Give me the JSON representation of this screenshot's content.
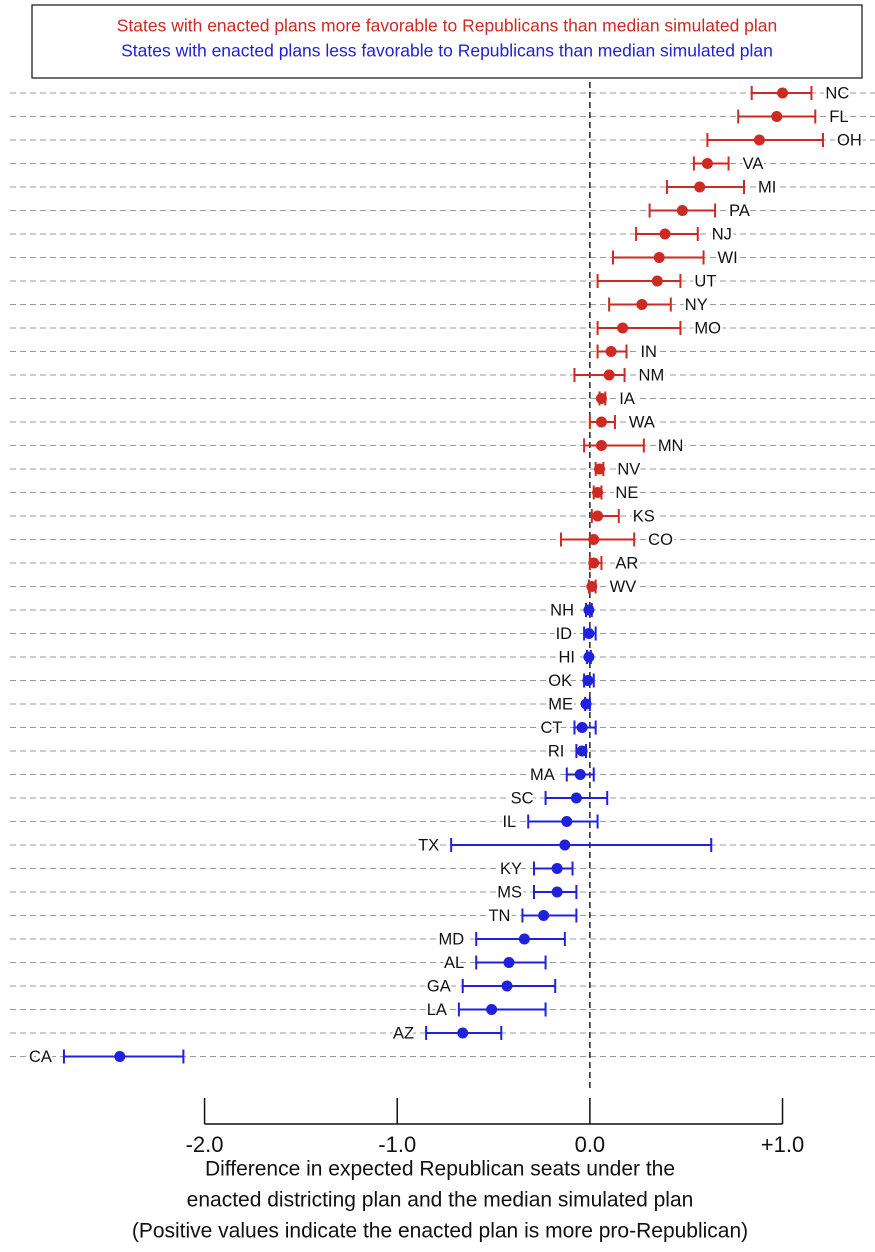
{
  "chart_data": {
    "type": "dot-interval",
    "series": [
      {
        "name": "States with enacted plans more favorable to Republicans than median simulated plan",
        "color": "#cc2a22",
        "labels": [
          "NC",
          "FL",
          "OH",
          "VA",
          "MI",
          "PA",
          "NJ",
          "WI",
          "UT",
          "NY",
          "MO",
          "IN",
          "NM",
          "IA",
          "WA",
          "MN",
          "NV",
          "NE",
          "KS",
          "CO",
          "AR",
          "WV"
        ],
        "values": [
          1.0,
          0.97,
          0.88,
          0.61,
          0.57,
          0.48,
          0.39,
          0.36,
          0.35,
          0.27,
          0.17,
          0.11,
          0.1,
          0.06,
          0.06,
          0.06,
          0.05,
          0.04,
          0.04,
          0.02,
          0.02,
          0.01
        ],
        "lower": [
          0.84,
          0.77,
          0.61,
          0.54,
          0.4,
          0.31,
          0.24,
          0.12,
          0.04,
          0.1,
          0.04,
          0.04,
          -0.08,
          0.05,
          0.0,
          -0.03,
          0.03,
          0.02,
          0.01,
          -0.15,
          0.0,
          -0.005
        ],
        "upper": [
          1.15,
          1.17,
          1.21,
          0.72,
          0.8,
          0.65,
          0.56,
          0.59,
          0.47,
          0.42,
          0.47,
          0.19,
          0.18,
          0.08,
          0.13,
          0.28,
          0.07,
          0.06,
          0.15,
          0.23,
          0.06,
          0.03
        ]
      },
      {
        "name": "States with enacted plans less favorable to Republicans than median simulated plan",
        "color": "#2020dd",
        "labels": [
          "NH",
          "ID",
          "HI",
          "OK",
          "ME",
          "CT",
          "RI",
          "MA",
          "SC",
          "IL",
          "TX",
          "KY",
          "MS",
          "TN",
          "MD",
          "AL",
          "GA",
          "LA",
          "AZ",
          "CA"
        ],
        "values": [
          -0.005,
          -0.005,
          -0.005,
          -0.01,
          -0.02,
          -0.04,
          -0.04,
          -0.05,
          -0.07,
          -0.12,
          -0.13,
          -0.17,
          -0.17,
          -0.24,
          -0.34,
          -0.42,
          -0.43,
          -0.51,
          -0.66,
          -2.44
        ],
        "lower": [
          -0.02,
          -0.03,
          -0.015,
          -0.03,
          -0.025,
          -0.08,
          -0.07,
          -0.12,
          -0.23,
          -0.32,
          -0.72,
          -0.29,
          -0.29,
          -0.35,
          -0.59,
          -0.59,
          -0.66,
          -0.68,
          -0.85,
          -2.73
        ],
        "upper": [
          0.01,
          0.03,
          0.005,
          0.02,
          0.0,
          0.03,
          -0.02,
          0.02,
          0.09,
          0.04,
          0.63,
          -0.09,
          -0.07,
          -0.07,
          -0.13,
          -0.23,
          -0.18,
          -0.23,
          -0.46,
          -2.11
        ]
      }
    ],
    "xlim": [
      -3.01,
      1.48
    ],
    "xticks": [
      {
        "value": -2,
        "label": "-2.0"
      },
      {
        "value": -1,
        "label": "-1.0"
      },
      {
        "value": 0,
        "label": "0.0"
      },
      {
        "value": 1,
        "label": "+1.0"
      }
    ],
    "xlabel": [
      "Difference in expected Republican seats under the",
      "enacted districting plan and the median simulated plan",
      "(Positive values indicate the enacted plan is more pro-Republican)"
    ],
    "reference_line": 0,
    "grid": true
  }
}
